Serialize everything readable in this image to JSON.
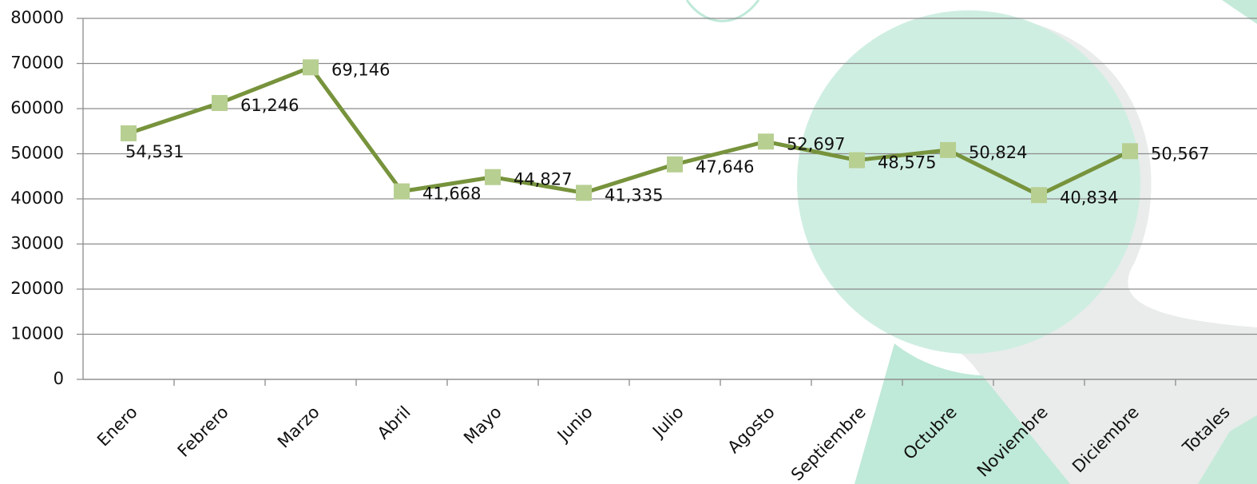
{
  "chart_data": {
    "type": "line",
    "categories": [
      "Enero",
      "Febrero",
      "Marzo",
      "Abril",
      "Mayo",
      "Junio",
      "Julio",
      "Agosto",
      "Septiembre",
      "Octubre",
      "Noviembre",
      "Diciembre",
      "Totales"
    ],
    "series": [
      {
        "color": "#77933c",
        "marker_color": "#b7cf91",
        "values": [
          54531,
          61246,
          69146,
          41668,
          44827,
          41335,
          47646,
          52697,
          48575,
          50824,
          40834,
          50567,
          null
        ],
        "value_labels": [
          "54,531",
          "61,246",
          "69,146",
          "41,668",
          "44,827",
          "41,335",
          "47,646",
          "52,697",
          "48,575",
          "50,824",
          "40,834",
          "50,567",
          null
        ]
      }
    ],
    "ylim": [
      0,
      80000
    ],
    "yticks": [
      0,
      10000,
      20000,
      30000,
      40000,
      50000,
      60000,
      70000,
      80000
    ],
    "grid": true
  }
}
